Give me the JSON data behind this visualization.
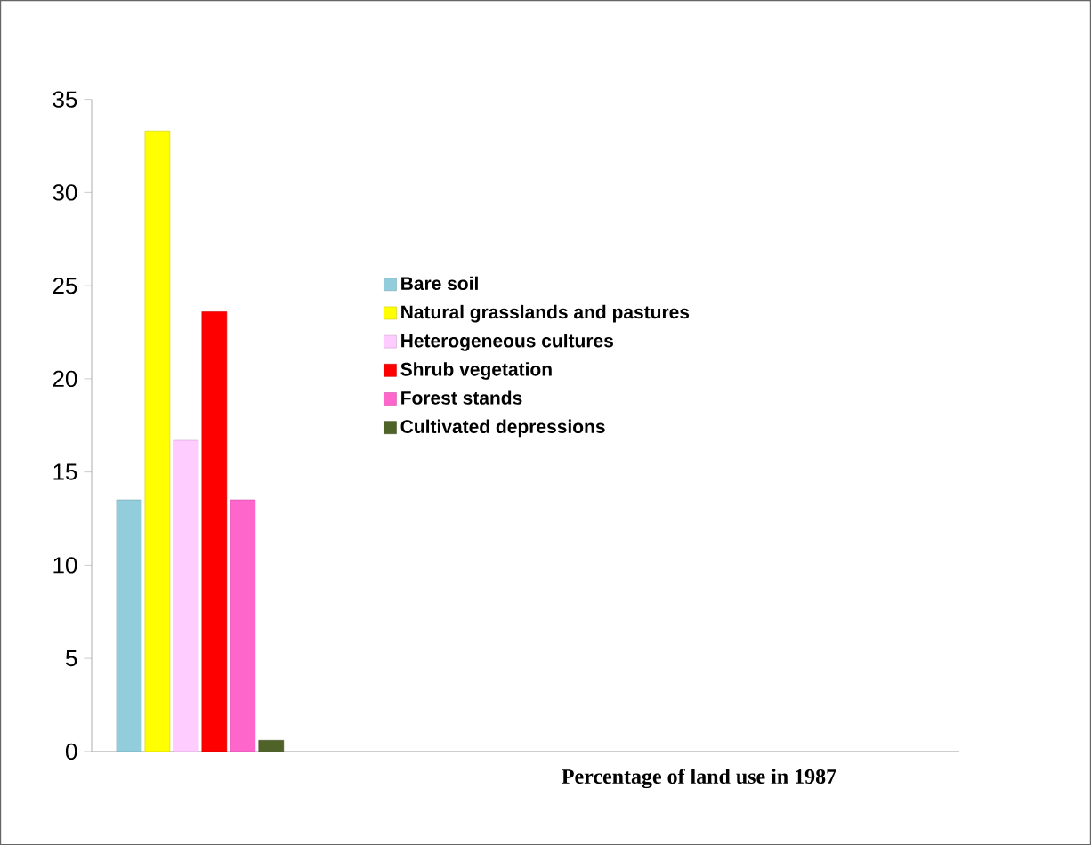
{
  "chart_data": {
    "type": "bar",
    "xlabel": "Percentage of land use in 1987",
    "categories": [
      null,
      null,
      null,
      null
    ],
    "series": [
      {
        "name": "Bare soil",
        "color": "#92cddc",
        "values": [
          13.5,
          null,
          null,
          null
        ]
      },
      {
        "name": "Natural grasslands and pastures",
        "color": "#ffff00",
        "values": [
          33.3,
          null,
          null,
          null
        ]
      },
      {
        "name": "Heterogeneous cultures",
        "color": "#ffccff",
        "values": [
          16.7,
          null,
          null,
          null
        ]
      },
      {
        "name": "Shrub vegetation",
        "color": "#ff0000",
        "values": [
          23.6,
          null,
          null,
          null
        ]
      },
      {
        "name": "Forest stands",
        "color": "#ff66cc",
        "values": [
          13.5,
          null,
          null,
          null
        ]
      },
      {
        "name": "Cultivated depressions",
        "color": "#4f6228",
        "values": [
          0.6,
          null,
          null,
          null
        ]
      }
    ],
    "ylim": [
      0,
      35
    ],
    "yticks": [
      0,
      5,
      10,
      15,
      20,
      25,
      30,
      35
    ],
    "grid": false,
    "legend": "right"
  }
}
